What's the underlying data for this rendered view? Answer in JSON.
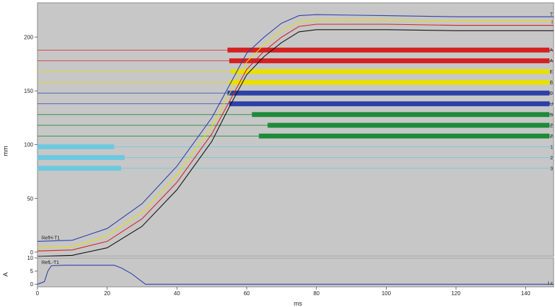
{
  "chart_data": [
    {
      "type": "line",
      "title": "",
      "xlabel": "",
      "ylabel": "mm",
      "xlim": [
        0,
        148
      ],
      "ylim": [
        -4,
        232
      ],
      "x_ticks": [
        0,
        20,
        40,
        60,
        80,
        100,
        120,
        140
      ],
      "y_ticks": [
        0,
        50,
        100,
        150,
        200
      ],
      "grid": false,
      "curves": [
        {
          "color": "#2d3fa8",
          "label": "RefH-T1",
          "points": [
            [
              0,
              10
            ],
            [
              10,
              11
            ],
            [
              20,
              22
            ],
            [
              30,
              45
            ],
            [
              40,
              80
            ],
            [
              50,
              125
            ],
            [
              55,
              155
            ],
            [
              60,
              185
            ],
            [
              65,
              200
            ],
            [
              70,
              213
            ],
            [
              75,
              220
            ],
            [
              80,
              221
            ],
            [
              100,
              220
            ],
            [
              120,
              219
            ],
            [
              148,
              219
            ]
          ]
        },
        {
          "color": "#e8e000",
          "label": "",
          "points": [
            [
              0,
              4
            ],
            [
              10,
              5
            ],
            [
              20,
              15
            ],
            [
              30,
              37
            ],
            [
              40,
              72
            ],
            [
              50,
              117
            ],
            [
              55,
              147
            ],
            [
              60,
              177
            ],
            [
              65,
              193
            ],
            [
              70,
              206
            ],
            [
              75,
              214
            ],
            [
              80,
              216
            ],
            [
              100,
              216
            ],
            [
              120,
              215
            ],
            [
              148,
              215
            ]
          ]
        },
        {
          "color": "#d42020",
          "label": "",
          "points": [
            [
              0,
              1
            ],
            [
              10,
              2
            ],
            [
              20,
              10
            ],
            [
              30,
              31
            ],
            [
              40,
              65
            ],
            [
              50,
              110
            ],
            [
              55,
              140
            ],
            [
              60,
              170
            ],
            [
              65,
              187
            ],
            [
              70,
              200
            ],
            [
              75,
              210
            ],
            [
              80,
              212
            ],
            [
              100,
              212
            ],
            [
              120,
              211
            ],
            [
              148,
              211
            ]
          ]
        },
        {
          "color": "#101010",
          "label": "",
          "points": [
            [
              0,
              -4
            ],
            [
              10,
              -3
            ],
            [
              20,
              4
            ],
            [
              30,
              24
            ],
            [
              40,
              58
            ],
            [
              50,
              103
            ],
            [
              55,
              135
            ],
            [
              60,
              165
            ],
            [
              65,
              182
            ],
            [
              70,
              195
            ],
            [
              75,
              205
            ],
            [
              80,
              207
            ],
            [
              100,
              207
            ],
            [
              120,
              206
            ],
            [
              148,
              206
            ]
          ]
        }
      ],
      "threshold_lines": [
        {
          "value": 188,
          "color": "#d42020",
          "bar_start": 54.5,
          "label": "A"
        },
        {
          "value": 178,
          "color": "#d42020",
          "bar_start": 55,
          "label": "A"
        },
        {
          "value": 168,
          "color": "#e8e000",
          "bar_start": 55.5,
          "label": "E"
        },
        {
          "value": 158,
          "color": "#e8e000",
          "bar_start": 55,
          "label": "B"
        },
        {
          "value": 148,
          "color": "#2d3fa8",
          "bar_start": 54.5,
          "label": "C"
        },
        {
          "value": 138,
          "color": "#2d3fa8",
          "bar_start": 55,
          "label": "U"
        },
        {
          "value": 128,
          "color": "#1e8a3a",
          "bar_start": 61.5,
          "label": "S"
        },
        {
          "value": 118,
          "color": "#1e8a3a",
          "bar_start": 66,
          "label": "Z"
        },
        {
          "value": 108,
          "color": "#1e8a3a",
          "bar_start": 63.5,
          "label": "Z"
        },
        {
          "value": 98,
          "color": "#6cc9e0",
          "bar_end": 22,
          "label": "1"
        },
        {
          "value": 88,
          "color": "#6cc9e0",
          "bar_end": 25,
          "label": "2"
        },
        {
          "value": 78,
          "color": "#6cc9e0",
          "bar_end": 24,
          "label": "3"
        }
      ],
      "right_labels": [
        "T",
        "I"
      ]
    },
    {
      "type": "line",
      "ylabel": "A",
      "xlabel": "ms",
      "xlim": [
        0,
        148
      ],
      "ylim": [
        -1,
        10
      ],
      "y_ticks": [
        0,
        5,
        10
      ],
      "curves": [
        {
          "color": "#2d3fa8",
          "label": "RefL-T1",
          "points": [
            [
              0,
              0
            ],
            [
              2,
              1
            ],
            [
              3,
              5
            ],
            [
              4,
              7
            ],
            [
              8,
              7.2
            ],
            [
              22,
              7.2
            ],
            [
              24,
              6.2
            ],
            [
              27,
              4
            ],
            [
              30,
              1
            ],
            [
              31,
              0
            ],
            [
              148,
              0
            ]
          ]
        }
      ],
      "right_labels": [
        "I c"
      ]
    }
  ]
}
